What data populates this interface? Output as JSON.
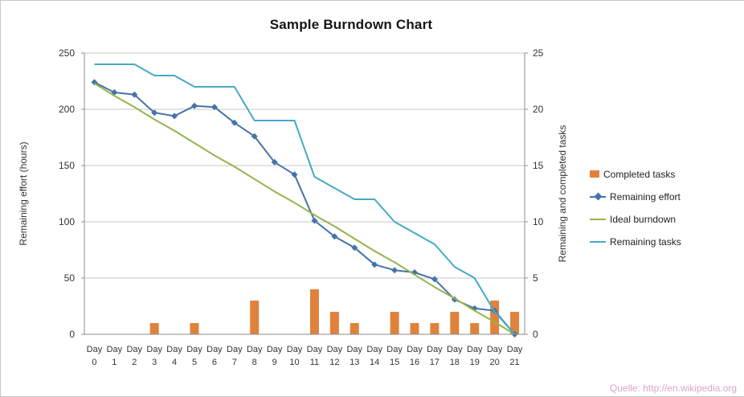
{
  "watermark": "Quelle: http://en.wikipedia.org",
  "chart_data": {
    "type": "combo",
    "title": "Sample Burndown Chart",
    "background": "#FFFFFF",
    "grid": true,
    "grid_color": "#C9C9C9",
    "axis_color": "#8C8C8C",
    "text_color": "#333333",
    "legend_position": "right",
    "x_label_prefix": "Day",
    "categories": [
      "0",
      "1",
      "2",
      "3",
      "4",
      "5",
      "6",
      "7",
      "8",
      "9",
      "10",
      "11",
      "12",
      "13",
      "14",
      "15",
      "16",
      "17",
      "18",
      "19",
      "20",
      "21"
    ],
    "left_axis": {
      "title": "Remaining effort (hours)",
      "min": 0,
      "max": 250,
      "ticks": [
        0,
        50,
        100,
        150,
        200,
        250
      ]
    },
    "right_axis": {
      "title": "Remaining and completed tasks",
      "min": 0,
      "max": 25,
      "ticks": [
        0,
        5,
        10,
        15,
        20,
        25
      ]
    },
    "series": [
      {
        "name": "Completed tasks",
        "type": "bar",
        "axis": "right",
        "color": "#E0823C",
        "values": [
          0,
          0,
          0,
          1,
          0,
          1,
          0,
          0,
          3,
          0,
          0,
          4,
          2,
          1,
          0,
          2,
          1,
          1,
          2,
          1,
          3,
          2
        ]
      },
      {
        "name": "Remaining effort",
        "type": "line",
        "marker": "diamond",
        "axis": "left",
        "color": "#4573A7",
        "values": [
          224,
          215,
          213,
          197,
          194,
          203,
          202,
          188,
          176,
          153,
          142,
          101,
          87,
          77,
          62,
          57,
          55,
          49,
          31,
          23,
          21,
          0
        ]
      },
      {
        "name": "Ideal burndown",
        "type": "line",
        "axis": "left",
        "color": "#94B44F",
        "values": [
          223,
          212,
          202,
          191,
          181,
          170,
          159,
          149,
          138,
          127,
          117,
          106,
          96,
          85,
          74,
          64,
          53,
          42,
          32,
          21,
          11,
          0
        ]
      },
      {
        "name": "Remaining tasks",
        "type": "line",
        "axis": "right",
        "color": "#46A9C6",
        "values": [
          24,
          24,
          24,
          23,
          23,
          22,
          22,
          22,
          19,
          19,
          19,
          14,
          13,
          12,
          12,
          10,
          9,
          8,
          6,
          5,
          2,
          0
        ]
      }
    ]
  }
}
